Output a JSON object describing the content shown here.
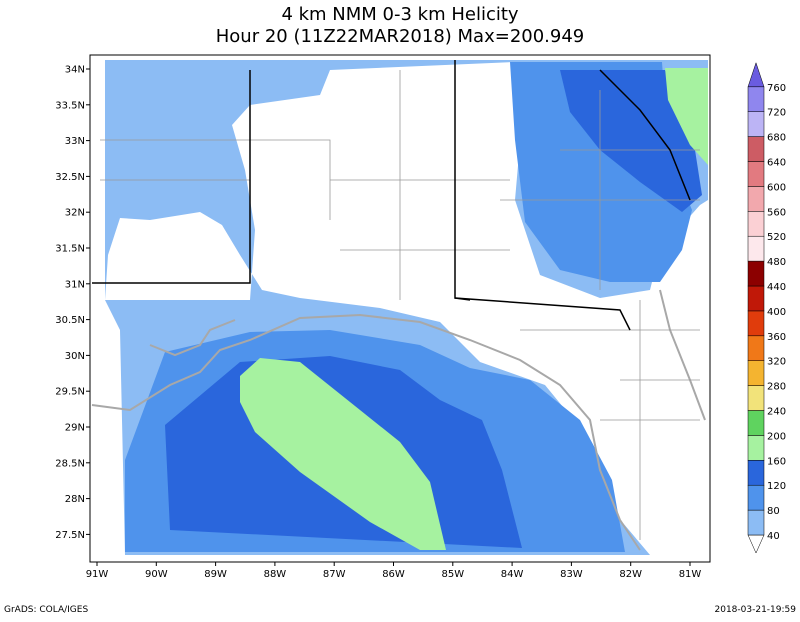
{
  "title": {
    "line1": "4 km NMM 0-3 km Helicity",
    "line2": "Hour 20 (11Z22MAR2018) Max=200.949"
  },
  "map": {
    "lat_labels": [
      "34N",
      "33.5N",
      "33N",
      "32.5N",
      "32N",
      "31.5N",
      "31N",
      "30.5N",
      "30N",
      "29.5N",
      "29N",
      "28.5N",
      "28N",
      "27.5N"
    ],
    "lon_labels": [
      "91W",
      "90W",
      "89W",
      "88W",
      "87W",
      "86W",
      "85W",
      "84W",
      "83W",
      "82W",
      "81W"
    ]
  },
  "colorbar": {
    "labels": [
      40,
      80,
      120,
      160,
      200,
      240,
      280,
      320,
      360,
      400,
      440,
      480,
      520,
      560,
      600,
      640,
      680,
      720,
      760
    ],
    "colors": [
      "#ffffff",
      "#8cbcf4",
      "#4f93ec",
      "#2a66dc",
      "#a6f2a0",
      "#5fd35f",
      "#f2e37a",
      "#f4b430",
      "#f07818",
      "#e03c0c",
      "#c01808",
      "#8c0000",
      "#fde8ec",
      "#fbd0d4",
      "#f2a8ad",
      "#e27a80",
      "#cd5c64",
      "#bcb4f5",
      "#8f86ee",
      "#6a5ce0",
      "#b07a6a"
    ]
  },
  "footer": {
    "left": "GrADS: COLA/IGES",
    "right": "2018-03-21-19:59"
  }
}
